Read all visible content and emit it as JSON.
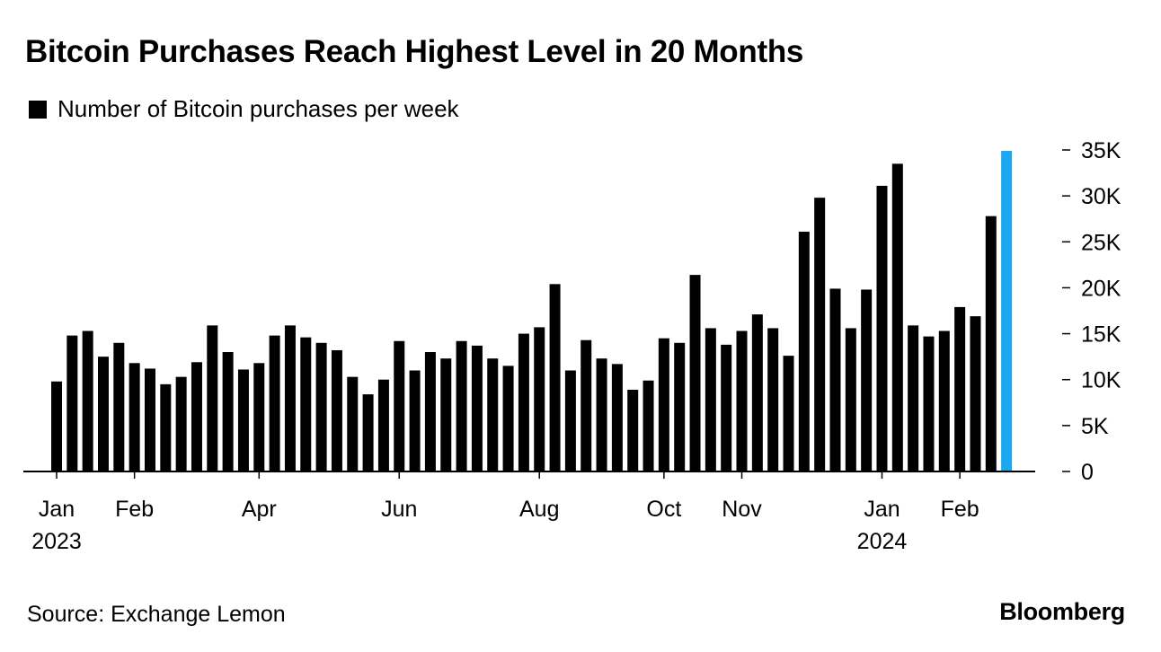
{
  "header": {
    "title": "Bitcoin Purchases Reach Highest Level in 20 Months"
  },
  "legend": {
    "label": "Number of Bitcoin purchases per week",
    "color": "#000000"
  },
  "footer": {
    "source": "Source: Exchange Lemon",
    "brand": "Bloomberg"
  },
  "chart_data": {
    "type": "bar",
    "series": [
      {
        "name": "Number of Bitcoin purchases per week",
        "color": "#000000",
        "highlight_color": "#1ba8f0",
        "highlight_last": true,
        "values": [
          9800,
          14800,
          15300,
          12500,
          14000,
          11800,
          11200,
          9500,
          10300,
          11900,
          15900,
          13000,
          11100,
          11800,
          14800,
          15900,
          14600,
          14000,
          13200,
          10300,
          8400,
          10000,
          14200,
          11000,
          13000,
          12300,
          14200,
          13700,
          12300,
          11500,
          15000,
          15700,
          20400,
          11000,
          14300,
          12300,
          11700,
          8900,
          9900,
          14500,
          14000,
          21400,
          15600,
          13800,
          15300,
          17100,
          15600,
          12600,
          26100,
          29800,
          19900,
          15600,
          19800,
          31100,
          33500,
          15900,
          14700,
          15300,
          17900,
          16900,
          27800,
          34900
        ]
      }
    ],
    "y_axis": {
      "ylim": [
        0,
        35000
      ],
      "ticks": [
        0,
        5000,
        10000,
        15000,
        20000,
        25000,
        30000,
        35000
      ],
      "tick_labels": [
        "0",
        "5K",
        "10K",
        "15K",
        "20K",
        "25K",
        "30K",
        "35K"
      ],
      "position": "right"
    },
    "x_axis": {
      "ticks": [
        {
          "index": 0,
          "label": "Jan",
          "sublabel": "2023"
        },
        {
          "index": 5,
          "label": "Feb",
          "sublabel": ""
        },
        {
          "index": 13,
          "label": "Apr",
          "sublabel": ""
        },
        {
          "index": 22,
          "label": "Jun",
          "sublabel": ""
        },
        {
          "index": 31,
          "label": "Aug",
          "sublabel": ""
        },
        {
          "index": 39,
          "label": "Oct",
          "sublabel": ""
        },
        {
          "index": 44,
          "label": "Nov",
          "sublabel": ""
        },
        {
          "index": 53,
          "label": "Jan",
          "sublabel": "2024"
        },
        {
          "index": 58,
          "label": "Feb",
          "sublabel": ""
        }
      ]
    },
    "grid": false,
    "legend_position": "top-left"
  }
}
